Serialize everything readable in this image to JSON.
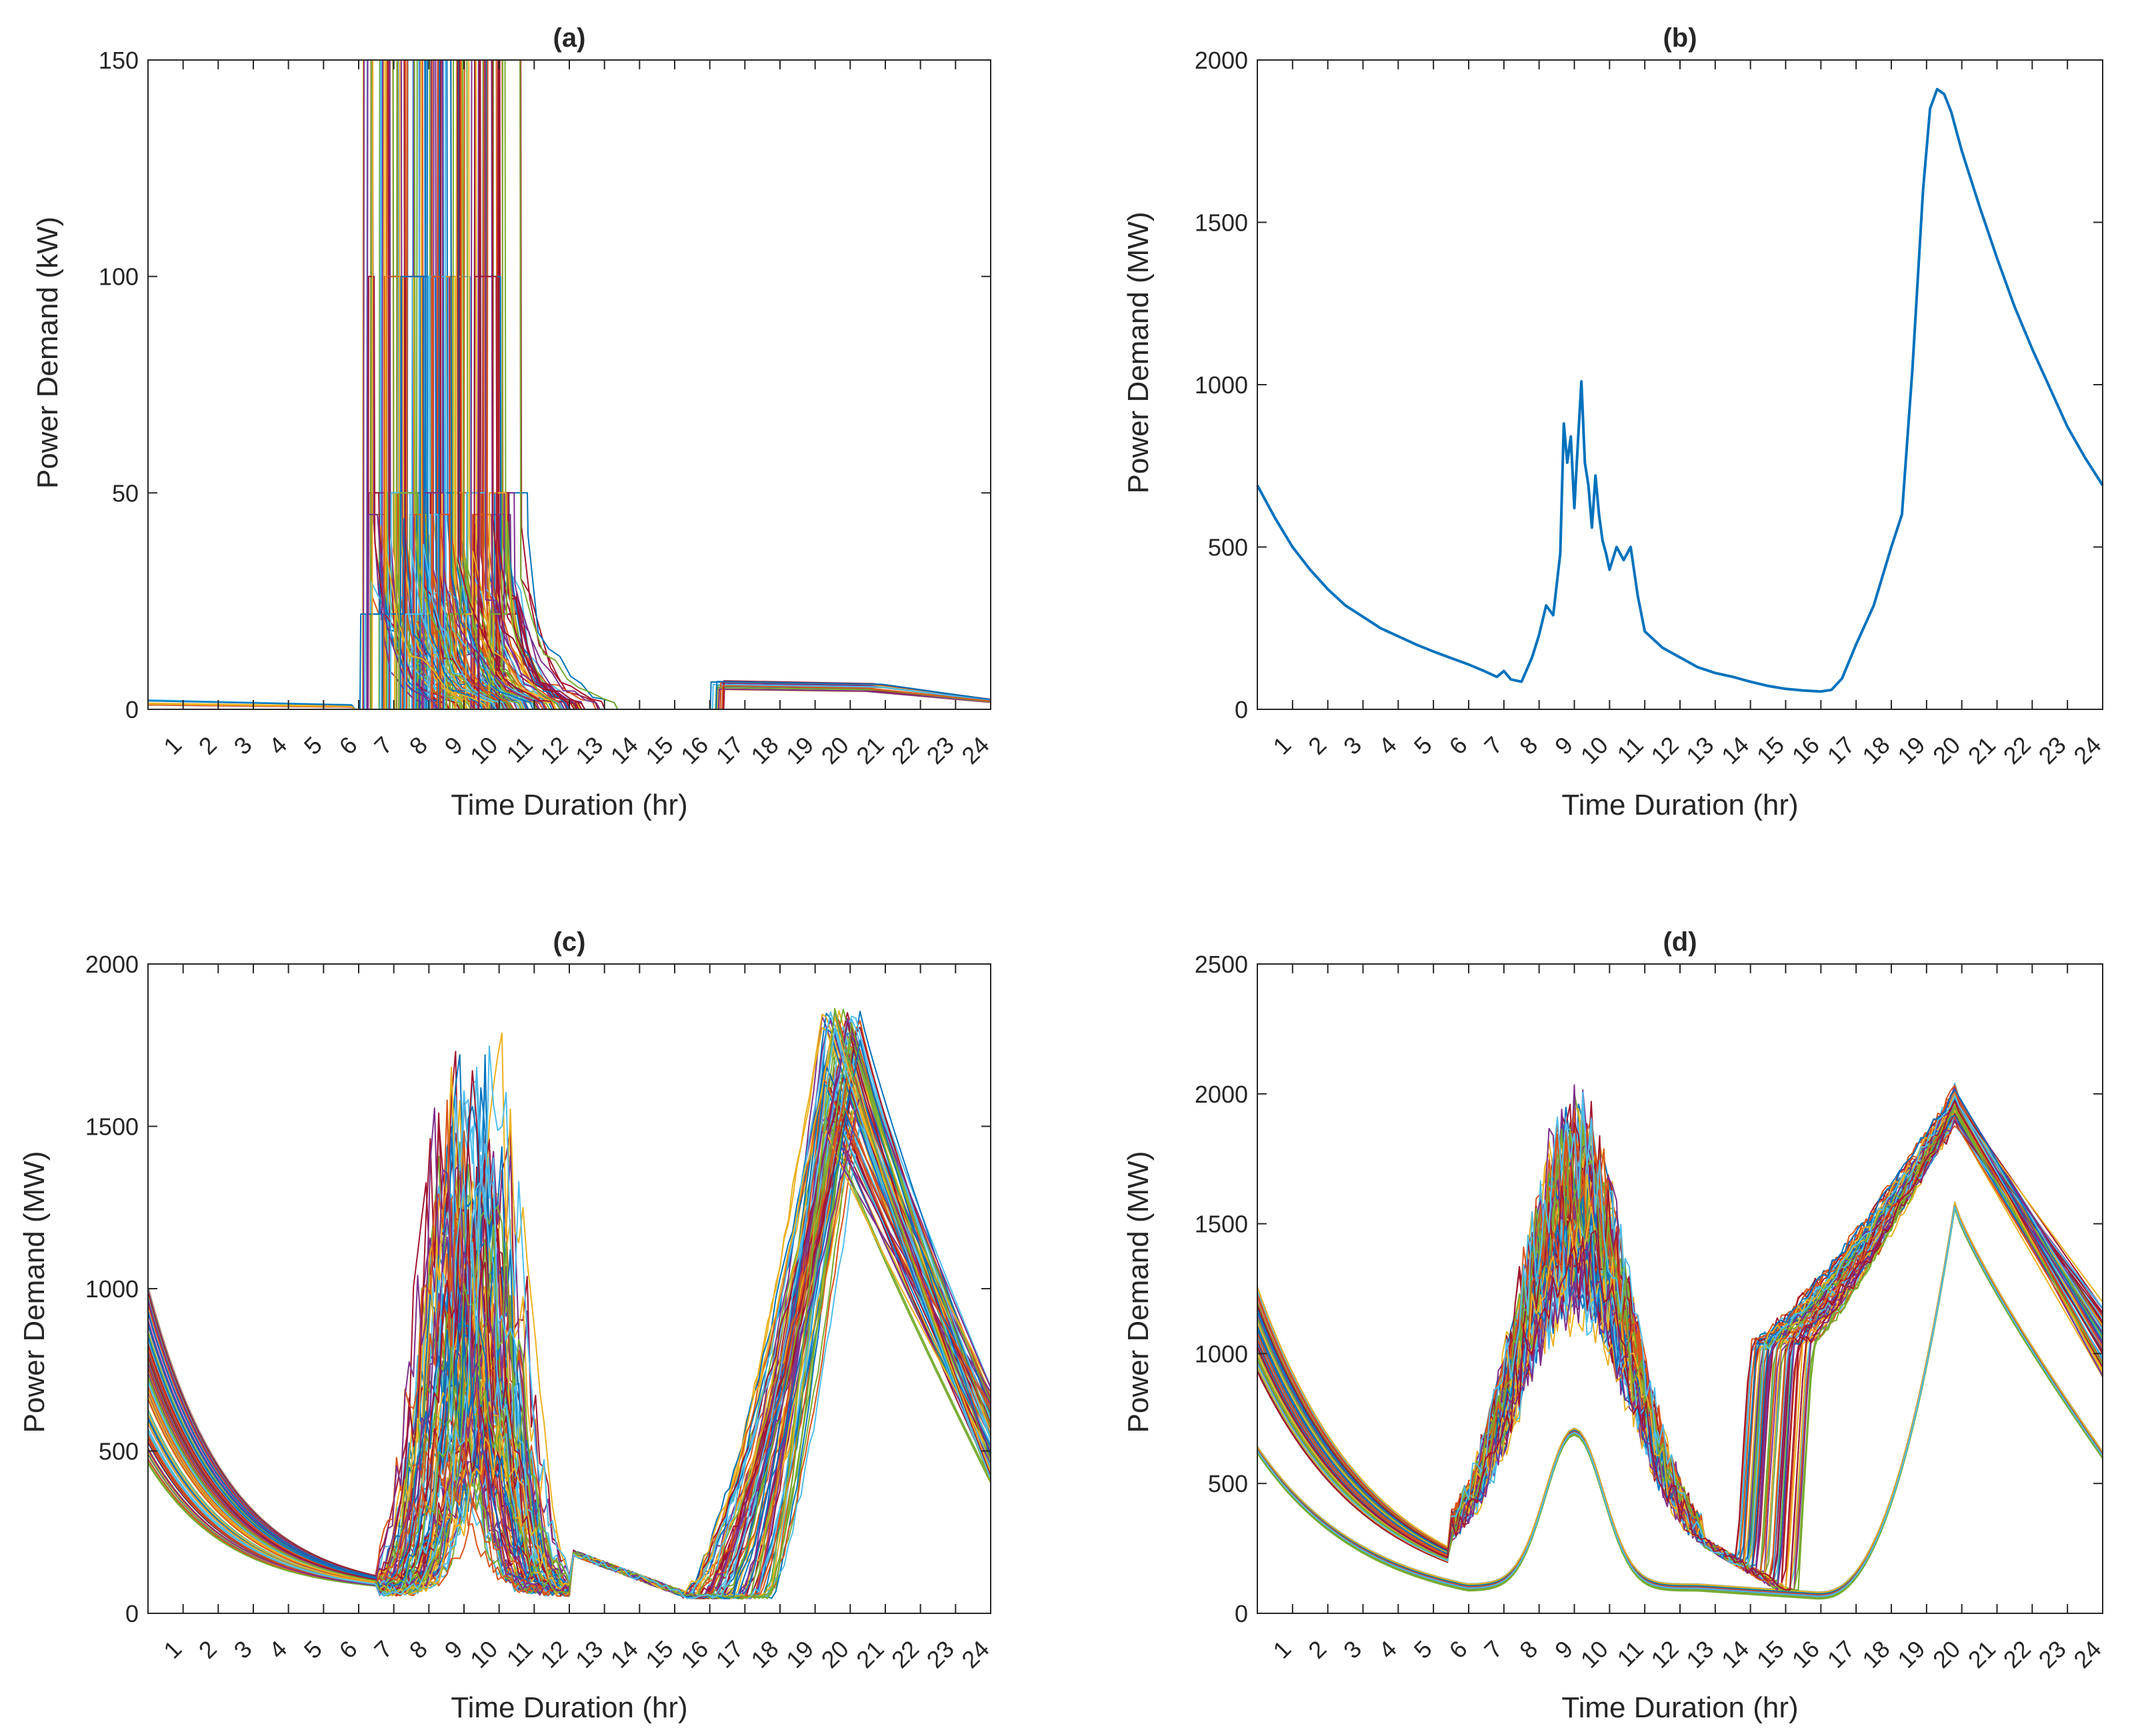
{
  "figure": {
    "panels": [
      "(a)",
      "(b)",
      "(c)",
      "(d)"
    ]
  },
  "chart_data": [
    {
      "type": "line",
      "title": "(a)",
      "xlabel": "Time Duration (hr)",
      "ylabel": "Power Demand (kW)",
      "xlim": [
        0,
        24
      ],
      "ylim": [
        0,
        150
      ],
      "xticks": [
        1,
        2,
        3,
        4,
        5,
        6,
        7,
        8,
        9,
        10,
        11,
        12,
        13,
        14,
        15,
        16,
        17,
        18,
        19,
        20,
        21,
        22,
        23,
        24
      ],
      "yticks": [
        0,
        50,
        100,
        150
      ],
      "grid": false,
      "legend": "none",
      "description_of_series": "hundreds of individual EV charging profiles; near-zero overnight, tall spikes up to the 150 kW limit between 6 and 11.5 h, plateau near 50 kW, decaying to zero by 14 h, evening block of about 5-7 kW from 16 to 21 h",
      "series_summary": {
        "night_baseline_kW": 3,
        "morning_spike_window_hr": [
          6,
          11.5
        ],
        "morning_max_kW": 150,
        "plateau_kW": 50,
        "evening_window_hr": [
          16,
          21
        ],
        "evening_level_kW": 6.5
      }
    },
    {
      "type": "line",
      "title": "(b)",
      "xlabel": "Time Duration (hr)",
      "ylabel": "Power Demand (MW)",
      "xlim": [
        0,
        24
      ],
      "ylim": [
        0,
        2000
      ],
      "xticks": [
        1,
        2,
        3,
        4,
        5,
        6,
        7,
        8,
        9,
        10,
        11,
        12,
        13,
        14,
        15,
        16,
        17,
        18,
        19,
        20,
        21,
        22,
        23,
        24
      ],
      "yticks": [
        0,
        500,
        1000,
        1500,
        2000
      ],
      "grid": false,
      "legend": "none",
      "series": [
        {
          "color": "#0072BD",
          "x": [
            0,
            0.5,
            1,
            1.5,
            2,
            2.5,
            3,
            3.5,
            4,
            4.5,
            5,
            5.5,
            6,
            6.4,
            6.8,
            7,
            7.2,
            7.5,
            7.8,
            8,
            8.2,
            8.4,
            8.6,
            8.7,
            8.8,
            8.9,
            9,
            9.1,
            9.2,
            9.3,
            9.4,
            9.5,
            9.6,
            9.7,
            9.8,
            9.9,
            10,
            10.2,
            10.4,
            10.6,
            10.8,
            11,
            11.5,
            12,
            12.5,
            13,
            13.5,
            14,
            14.5,
            15,
            15.5,
            16,
            16.3,
            16.6,
            17,
            17.5,
            18,
            18.3,
            18.6,
            18.9,
            19.1,
            19.3,
            19.5,
            19.7,
            20,
            20.5,
            21,
            21.5,
            22,
            22.5,
            23,
            23.5,
            24
          ],
          "y": [
            690,
            590,
            500,
            430,
            370,
            320,
            285,
            250,
            225,
            200,
            178,
            158,
            138,
            120,
            100,
            118,
            92,
            85,
            160,
            230,
            320,
            290,
            480,
            880,
            760,
            840,
            620,
            820,
            1010,
            760,
            690,
            560,
            720,
            600,
            520,
            480,
            430,
            500,
            460,
            500,
            350,
            240,
            190,
            160,
            130,
            112,
            100,
            85,
            72,
            63,
            58,
            55,
            60,
            95,
            200,
            320,
            500,
            600,
            1050,
            1600,
            1850,
            1910,
            1895,
            1840,
            1720,
            1550,
            1390,
            1240,
            1110,
            990,
            870,
            775,
            690
          ]
        }
      ]
    },
    {
      "type": "line",
      "title": "(c)",
      "xlabel": "Time Duration (hr)",
      "ylabel": "Power Demand (MW)",
      "xlim": [
        0,
        24
      ],
      "ylim": [
        0,
        2000
      ],
      "xticks": [
        1,
        2,
        3,
        4,
        5,
        6,
        7,
        8,
        9,
        10,
        11,
        12,
        13,
        14,
        15,
        16,
        17,
        18,
        19,
        20,
        21,
        22,
        23,
        24
      ],
      "yticks": [
        0,
        500,
        1000,
        1500,
        2000
      ],
      "grid": false,
      "legend": "none",
      "description_of_series": "hundreds of aggregate demand profiles; start 400-950 MW at 0 h, fall to about 50-100 MW near 6-7 h, noisy morning hump reaching 1650 MW around 8-10 h, trough near 50 MW around 15-16 h, evening ramp to peaks of 1700-1900 MW around 19-20 h, ending 400-700 MW at 24 h",
      "series_summary": {
        "start_range_MW": [
          400,
          950
        ],
        "morning_peak_MW": 1650,
        "morning_peak_hr": 9.8,
        "evening_peak_MW": 1900,
        "evening_peak_hr": 19.8,
        "end_range_MW": [
          400,
          700
        ]
      }
    },
    {
      "type": "line",
      "title": "(d)",
      "xlabel": "Time Duration (hr)",
      "ylabel": "Power Demand (MW)",
      "xlim": [
        0,
        24
      ],
      "ylim": [
        0,
        2500
      ],
      "xticks": [
        1,
        2,
        3,
        4,
        5,
        6,
        7,
        8,
        9,
        10,
        11,
        12,
        13,
        14,
        15,
        16,
        17,
        18,
        19,
        20,
        21,
        22,
        23,
        24
      ],
      "yticks": [
        0,
        500,
        1000,
        1500,
        2000,
        2500
      ],
      "grid": false,
      "legend": "none",
      "description_of_series": "two groups of profiles: an upper noisy group starting 900-1230 MW, dropping to about 200 MW near 5.5 h, morning band 1200-1850 MW (max 2100 MW) around 9 h, trough 100-250 MW near 14-15 h, evening peak 1900-2020 MW near 19.8 h; and a lower smooth group starting near 620 MW, morning peak about 700 MW at 9 h, trough about 70 MW near 15.5 h, evening peak about 1570 MW near 19.8 h, ending about 610 MW",
      "series_summary": {
        "upper_group": {
          "start_MW": [
            900,
            1230
          ],
          "morning_peak_MW": 2100,
          "evening_peak_MW": 2020,
          "end_MW": [
            900,
            1200
          ]
        },
        "lower_group": {
          "start_MW": 620,
          "morning_peak_MW": 700,
          "trough_MW": 70,
          "evening_peak_MW": 1570,
          "end_MW": 610
        }
      }
    }
  ]
}
